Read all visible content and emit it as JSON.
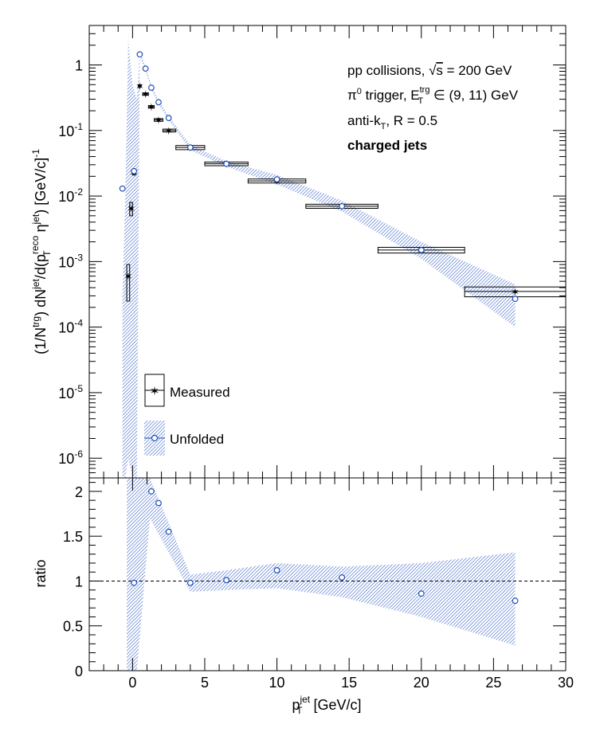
{
  "annotations": {
    "line1": "pp collisions, √s = 200 GeV",
    "line2": "π⁰ trigger, E_T^trg ∈ (9, 11) GeV",
    "line3": "anti-k_T, R = 0.5",
    "line4": "charged jets"
  },
  "legend": {
    "measured": "Measured",
    "unfolded": "Unfolded",
    "placement": "lower-left"
  },
  "colors": {
    "measured": "#222222",
    "unfolded": "#1f4fb5",
    "band": "#3a64c8"
  },
  "chart_data": [
    {
      "type": "scatter",
      "panel": "top",
      "ylabel": "(1/N^trg) dN^jet/d(p_T^reco η^jet) [GeV/c]^-1",
      "yscale": "log",
      "ylim": [
        5e-07,
        4
      ],
      "xlim": [
        -3,
        30
      ],
      "grid": false,
      "ytick_labels": [
        "1",
        "10^-1",
        "10^-2",
        "10^-3",
        "10^-4",
        "10^-5",
        "10^-6"
      ],
      "series": [
        {
          "name": "Measured",
          "x": [
            -0.3,
            -0.1,
            0.1,
            0.5,
            0.9,
            1.3,
            1.8,
            2.5,
            4.0,
            6.5,
            10.0,
            14.5,
            20.0,
            26.5
          ],
          "y": [
            0.0006,
            0.0065,
            0.023,
            0.48,
            0.36,
            0.23,
            0.145,
            0.1,
            0.055,
            0.031,
            0.017,
            0.007,
            0.0015,
            0.00035
          ],
          "x_lo": [
            -0.4,
            -0.2,
            0.0,
            0.4,
            0.7,
            1.1,
            1.5,
            2.1,
            3.0,
            5.0,
            8.0,
            12.0,
            17.0,
            23.0
          ],
          "x_hi": [
            -0.2,
            0.0,
            0.2,
            0.6,
            1.1,
            1.5,
            2.1,
            3.0,
            5.0,
            8.0,
            12.0,
            17.0,
            23.0,
            30.0
          ],
          "sys_lo": [
            0.00025,
            0.005,
            0.021,
            0.46,
            0.345,
            0.22,
            0.138,
            0.095,
            0.051,
            0.029,
            0.0158,
            0.0065,
            0.00135,
            0.00029
          ],
          "sys_hi": [
            0.0009,
            0.008,
            0.025,
            0.5,
            0.375,
            0.24,
            0.152,
            0.105,
            0.059,
            0.033,
            0.0182,
            0.0075,
            0.00165,
            0.00041
          ]
        },
        {
          "name": "Unfolded",
          "x": [
            -0.7,
            0.1,
            0.5,
            0.9,
            1.3,
            1.8,
            2.5,
            4.0,
            6.5,
            10.0,
            14.5,
            20.0,
            26.5
          ],
          "y": [
            0.013,
            0.024,
            1.45,
            0.88,
            0.45,
            0.27,
            0.155,
            0.055,
            0.031,
            0.018,
            0.007,
            0.0015,
            0.00027
          ],
          "band_x": [
            -0.7,
            -0.5,
            -0.3,
            0.0,
            0.3,
            0.5,
            0.9,
            1.3,
            1.8,
            2.5,
            4.0,
            6.5,
            10.0,
            14.5,
            20.0,
            26.5
          ],
          "band_lo": [
            5e-07,
            5e-07,
            1e-06,
            5e-07,
            5e-07,
            1.35,
            0.82,
            0.42,
            0.25,
            0.145,
            0.05,
            0.028,
            0.015,
            0.0058,
            0.0011,
            0.0001
          ],
          "band_hi": [
            0.0003,
            0.01,
            2.5,
            0.5,
            0.3,
            1.6,
            0.95,
            0.49,
            0.29,
            0.165,
            0.06,
            0.034,
            0.021,
            0.0085,
            0.002,
            0.00045
          ]
        }
      ]
    },
    {
      "type": "scatter",
      "panel": "bottom",
      "xlabel": "p_T^jet [GeV/c]",
      "ylabel": "ratio",
      "ylim": [
        0,
        2.15
      ],
      "xlim": [
        -3,
        30
      ],
      "grid": false,
      "reference_line": 1,
      "xtick_labels": [
        "0",
        "5",
        "10",
        "15",
        "20",
        "25",
        "30"
      ],
      "ytick_labels": [
        "0",
        "0.5",
        "1",
        "1.5",
        "2"
      ],
      "series": [
        {
          "name": "Unfolded",
          "x": [
            0.1,
            1.3,
            1.8,
            2.5,
            4.0,
            6.5,
            10.0,
            14.5,
            20.0,
            26.5
          ],
          "y": [
            0.98,
            2.0,
            1.87,
            1.55,
            0.98,
            1.01,
            1.12,
            1.04,
            0.86,
            0.78
          ],
          "band_x": [
            -0.4,
            0.3,
            1.2,
            4.0,
            6.5,
            10.0,
            14.5,
            20.0,
            26.5
          ],
          "band_lo": [
            0.0,
            0.0,
            1.7,
            0.88,
            0.9,
            0.92,
            0.82,
            0.6,
            0.28
          ],
          "band_hi": [
            2.15,
            2.15,
            2.15,
            1.07,
            1.12,
            1.2,
            1.16,
            1.2,
            1.32
          ]
        }
      ]
    }
  ]
}
